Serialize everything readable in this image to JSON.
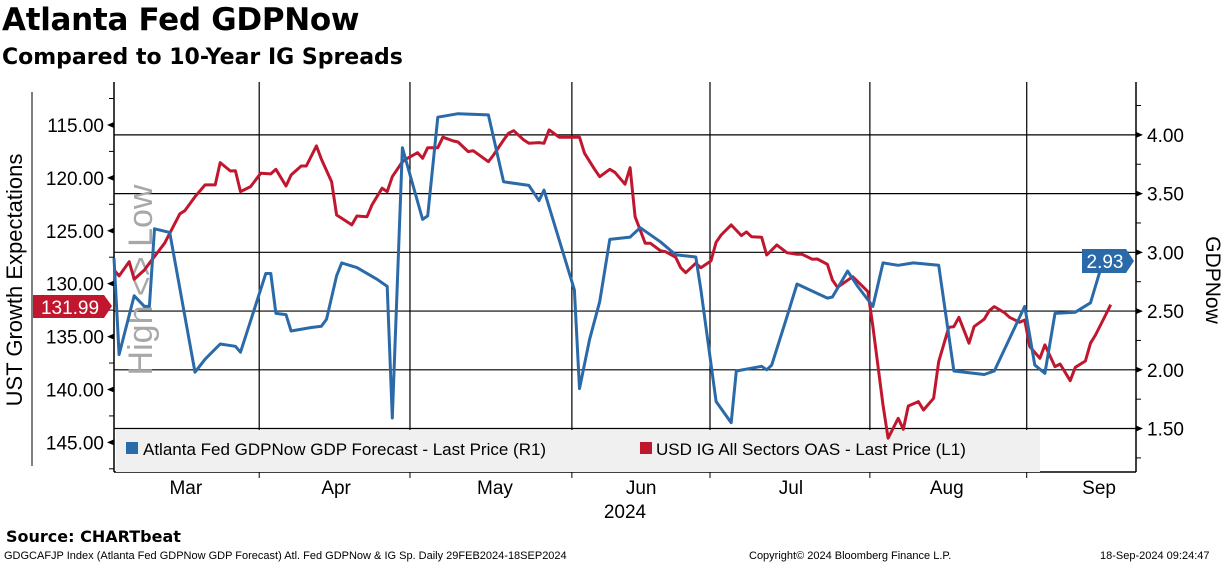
{
  "header": {
    "title": "Atlanta Fed GDPNow",
    "subtitle": "Compared to 10-Year IG Spreads"
  },
  "footer": {
    "source": "Source: CHARTbeat",
    "description": "GDGCAFJP Index (Atlanta Fed GDPNow GDP Forecast) Atl. Fed GDPNow & IG Sp.  Daily 29FEB2024-18SEP2024",
    "copyright": "Copyright© 2024 Bloomberg Finance L.P.",
    "timestamp": "18-Sep-2024 09:24:47"
  },
  "chart_data": {
    "type": "line",
    "title": "Atlanta Fed GDPNow",
    "subtitle": "Compared to 10-Year IG Spreads",
    "x_unit": "days since 2024-02-29",
    "xlim": [
      0,
      202
    ],
    "x_month_labels": [
      {
        "label": "Mar",
        "day": 14.2
      },
      {
        "label": "Apr",
        "day": 43.9
      },
      {
        "label": "May",
        "day": 75.3
      },
      {
        "label": "Jun",
        "day": 104.2
      },
      {
        "label": "Jul",
        "day": 133.8
      },
      {
        "label": "Aug",
        "day": 164.6
      },
      {
        "label": "Sep",
        "day": 194.7
      }
    ],
    "x_year_label": {
      "label": "2024",
      "day": 101
    },
    "x_gridlines": [
      28.7,
      58.5,
      90.5,
      117.8,
      149.4,
      180.4
    ],
    "left_axis": {
      "label": "UST Growth Expectations",
      "watermark": "High <> Low",
      "reversed": true,
      "range": [
        110.94,
        147.8
      ],
      "ticks": [
        "115.00",
        "120.00",
        "125.00",
        "130.00",
        "135.00",
        "140.00",
        "145.00"
      ],
      "tick_values": [
        115,
        120,
        125,
        130,
        135,
        140,
        145
      ],
      "minor_step": 2.5
    },
    "right_axis": {
      "label": "GDPNow",
      "range": [
        1.13,
        4.45
      ],
      "ticks": [
        "4.00",
        "3.50",
        "3.00",
        "2.50",
        "2.00",
        "1.50"
      ],
      "tick_values": [
        4,
        3.5,
        3,
        2.5,
        2,
        1.5
      ],
      "minor_step": 0.25
    },
    "grid": "horizontal at right-axis ticks, vertical at month boundaries",
    "legend_position": "bottom-left",
    "series": [
      {
        "name": "Atlanta Fed GDPNow GDP Forecast - Last Price (R1)",
        "axis": "right",
        "color": "#2a6aa8",
        "last_value_label": "2.93",
        "points": [
          [
            0,
            2.95
          ],
          [
            1,
            2.13
          ],
          [
            4,
            2.63
          ],
          [
            6,
            2.54
          ],
          [
            7,
            2.54
          ],
          [
            8,
            3.2
          ],
          [
            11,
            3.17
          ],
          [
            16,
            1.98
          ],
          [
            18,
            2.09
          ],
          [
            21,
            2.22
          ],
          [
            24,
            2.2
          ],
          [
            25,
            2.15
          ],
          [
            30,
            2.82
          ],
          [
            31,
            2.82
          ],
          [
            32,
            2.48
          ],
          [
            34,
            2.47
          ],
          [
            35,
            2.33
          ],
          [
            39,
            2.36
          ],
          [
            41,
            2.37
          ],
          [
            42,
            2.43
          ],
          [
            44,
            2.8
          ],
          [
            45,
            2.91
          ],
          [
            48,
            2.87
          ],
          [
            52,
            2.77
          ],
          [
            54,
            2.71
          ],
          [
            55,
            1.59
          ],
          [
            57,
            3.89
          ],
          [
            61,
            3.28
          ],
          [
            62,
            3.31
          ],
          [
            64,
            4.15
          ],
          [
            68,
            4.18
          ],
          [
            74,
            4.17
          ],
          [
            77,
            3.6
          ],
          [
            82,
            3.57
          ],
          [
            84,
            3.44
          ],
          [
            85,
            3.53
          ],
          [
            91,
            2.68
          ],
          [
            92,
            1.84
          ],
          [
            94,
            2.26
          ],
          [
            96,
            2.58
          ],
          [
            98,
            3.11
          ],
          [
            102,
            3.13
          ],
          [
            104,
            3.21
          ],
          [
            108,
            3.09
          ],
          [
            111,
            2.98
          ],
          [
            115,
            2.96
          ],
          [
            116,
            2.68
          ],
          [
            119,
            1.73
          ],
          [
            122,
            1.55
          ],
          [
            123,
            1.99
          ],
          [
            128,
            2.03
          ],
          [
            129,
            2.0
          ],
          [
            130,
            2.04
          ],
          [
            133,
            2.45
          ],
          [
            135,
            2.73
          ],
          [
            141,
            2.61
          ],
          [
            142,
            2.62
          ],
          [
            145,
            2.84
          ],
          [
            147,
            2.71
          ],
          [
            150,
            2.54
          ],
          [
            152,
            2.91
          ],
          [
            155,
            2.89
          ],
          [
            158,
            2.91
          ],
          [
            163,
            2.89
          ],
          [
            166,
            1.99
          ],
          [
            172,
            1.96
          ],
          [
            174,
            1.99
          ],
          [
            180,
            2.54
          ],
          [
            182,
            2.04
          ],
          [
            184,
            1.97
          ],
          [
            186,
            2.48
          ],
          [
            190,
            2.49
          ],
          [
            193,
            2.57
          ],
          [
            196,
            3.0
          ],
          [
            197,
            2.93
          ]
        ]
      },
      {
        "name": "USD IG All Sectors OAS - Last Price (L1)",
        "axis": "left",
        "color": "#c0172f",
        "last_value_label": "131.99",
        "points": [
          [
            0,
            128.71
          ],
          [
            1,
            129.27
          ],
          [
            3,
            127.92
          ],
          [
            4,
            129.58
          ],
          [
            6,
            128.71
          ],
          [
            7,
            128.07
          ],
          [
            10,
            126.18
          ],
          [
            13,
            123.41
          ],
          [
            14,
            123.1
          ],
          [
            16,
            121.78
          ],
          [
            18,
            120.67
          ],
          [
            20,
            120.67
          ],
          [
            21,
            118.56
          ],
          [
            23,
            119.35
          ],
          [
            24,
            119.32
          ],
          [
            25,
            121.3
          ],
          [
            27,
            120.83
          ],
          [
            29,
            119.57
          ],
          [
            31,
            119.63
          ],
          [
            32,
            119.19
          ],
          [
            34,
            120.77
          ],
          [
            35,
            119.73
          ],
          [
            37,
            118.88
          ],
          [
            38,
            118.88
          ],
          [
            40,
            116.98
          ],
          [
            41,
            118.24
          ],
          [
            43,
            120.36
          ],
          [
            44,
            123.51
          ],
          [
            45,
            123.82
          ],
          [
            47,
            124.45
          ],
          [
            48,
            123.6
          ],
          [
            50,
            123.67
          ],
          [
            51,
            122.56
          ],
          [
            53,
            120.98
          ],
          [
            54,
            121.3
          ],
          [
            55,
            119.89
          ],
          [
            57,
            118.47
          ],
          [
            58,
            118.15
          ],
          [
            60,
            117.62
          ],
          [
            61,
            118.15
          ],
          [
            62,
            117.15
          ],
          [
            64,
            117.15
          ],
          [
            65,
            116.16
          ],
          [
            67,
            116.51
          ],
          [
            68,
            116.61
          ],
          [
            70,
            117.52
          ],
          [
            71,
            117.43
          ],
          [
            74,
            118.47
          ],
          [
            75,
            117.84
          ],
          [
            77,
            116.42
          ],
          [
            78,
            115.78
          ],
          [
            79,
            115.54
          ],
          [
            81,
            116.42
          ],
          [
            82,
            116.73
          ],
          [
            84,
            116.67
          ],
          [
            85,
            116.73
          ],
          [
            86,
            115.47
          ],
          [
            88,
            116.16
          ],
          [
            92,
            116.16
          ],
          [
            93,
            117.67
          ],
          [
            95,
            119.19
          ],
          [
            96,
            119.89
          ],
          [
            98,
            119.19
          ],
          [
            99,
            119.47
          ],
          [
            101,
            120.6
          ],
          [
            102,
            119.04
          ],
          [
            103,
            123.67
          ],
          [
            105,
            126.18
          ],
          [
            106,
            126.18
          ],
          [
            108,
            126.88
          ],
          [
            109,
            126.98
          ],
          [
            111,
            127.5
          ],
          [
            112,
            128.49
          ],
          [
            113,
            128.96
          ],
          [
            115,
            128.07
          ],
          [
            116,
            128.49
          ],
          [
            118,
            127.85
          ],
          [
            119,
            126.09
          ],
          [
            120,
            125.4
          ],
          [
            122,
            124.45
          ],
          [
            124,
            125.46
          ],
          [
            125,
            125.11
          ],
          [
            126,
            125.56
          ],
          [
            128,
            125.61
          ],
          [
            129,
            127.29
          ],
          [
            131,
            126.34
          ],
          [
            133,
            127.07
          ],
          [
            135,
            127.22
          ],
          [
            136,
            127.22
          ],
          [
            138,
            127.69
          ],
          [
            139,
            127.67
          ],
          [
            141,
            128.17
          ],
          [
            142,
            129.65
          ],
          [
            143,
            130.34
          ],
          [
            146,
            129.34
          ],
          [
            148,
            130.28
          ],
          [
            149,
            130.76
          ],
          [
            150,
            134.06
          ],
          [
            152,
            141.47
          ],
          [
            153,
            144.61
          ],
          [
            155,
            142.72
          ],
          [
            156,
            143.76
          ],
          [
            157,
            141.56
          ],
          [
            159,
            141.15
          ],
          [
            160,
            141.94
          ],
          [
            162,
            140.83
          ],
          [
            163,
            137.37
          ],
          [
            165,
            134.12
          ],
          [
            166,
            134.06
          ],
          [
            167,
            133.18
          ],
          [
            169,
            135.63
          ],
          [
            170,
            134.06
          ],
          [
            172,
            133.36
          ],
          [
            173,
            132.55
          ],
          [
            174,
            132.17
          ],
          [
            176,
            132.74
          ],
          [
            177,
            133.18
          ],
          [
            179,
            133.65
          ],
          [
            180,
            133.43
          ],
          [
            181,
            135.95
          ],
          [
            183,
            137.05
          ],
          [
            184,
            135.79
          ],
          [
            186,
            137.85
          ],
          [
            187,
            137.59
          ],
          [
            189,
            139.17
          ],
          [
            190,
            137.9
          ],
          [
            192,
            137.31
          ],
          [
            193,
            135.63
          ],
          [
            194,
            134.85
          ],
          [
            196,
            132.96
          ],
          [
            197,
            131.99
          ]
        ]
      }
    ]
  }
}
